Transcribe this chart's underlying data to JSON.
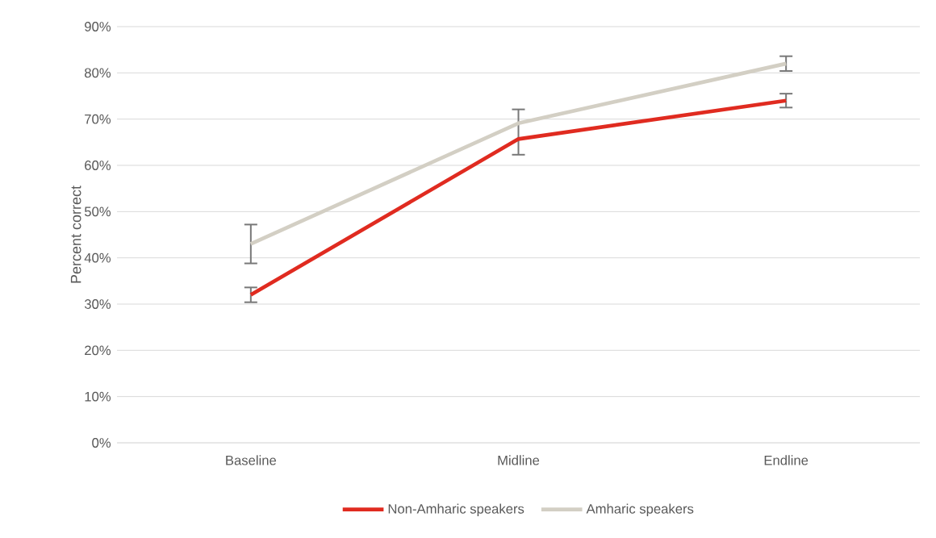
{
  "chart_data": {
    "type": "line",
    "ylabel": "Percent correct",
    "categories": [
      "Baseline",
      "Midline",
      "Endline"
    ],
    "series": [
      {
        "name": "Non-Amharic speakers",
        "color": "#e02b20",
        "values": [
          32.0,
          65.7,
          74.0
        ],
        "errors": [
          1.6,
          null,
          1.5
        ]
      },
      {
        "name": "Amharic speakers",
        "color": "#d3cfc4",
        "values": [
          43.0,
          69.1,
          82.0
        ],
        "errors": [
          4.2,
          [
            62.3,
            72.1
          ],
          1.6
        ]
      }
    ],
    "ylim": [
      0,
      90
    ],
    "yticks": [
      {
        "value": 0,
        "label": "0%"
      },
      {
        "value": 10,
        "label": "10%"
      },
      {
        "value": 20,
        "label": "20%"
      },
      {
        "value": 30,
        "label": "30%"
      },
      {
        "value": 40,
        "label": "40%"
      },
      {
        "value": 50,
        "label": "50%"
      },
      {
        "value": 60,
        "label": "60%"
      },
      {
        "value": 70,
        "label": "70%"
      },
      {
        "value": 80,
        "label": "80%"
      },
      {
        "value": 90,
        "label": "90%"
      }
    ],
    "grid": "y",
    "legend": "bottom",
    "marker": "none",
    "line_style": "solid"
  }
}
